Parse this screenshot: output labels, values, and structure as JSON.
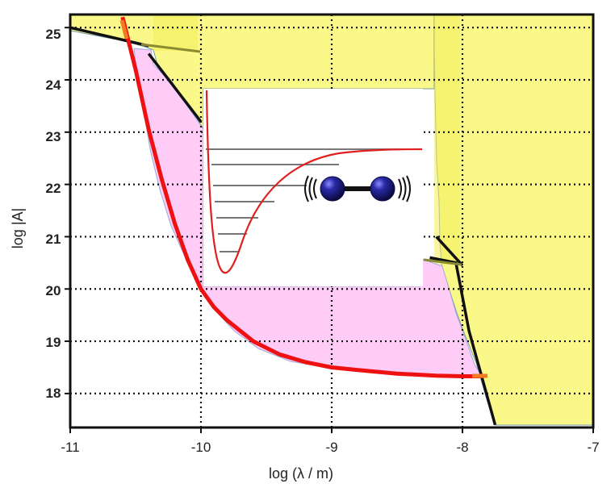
{
  "chart_data": {
    "type": "area",
    "xlabel": "log (λ / m)",
    "ylabel": "log |A|",
    "xlim": [
      -11,
      -7
    ],
    "ylim": [
      17.35,
      25.25
    ],
    "x_ticks": [
      "-11",
      "-10",
      "-9",
      "-8",
      "-7"
    ],
    "y_ticks": [
      "25",
      "24",
      "23",
      "22",
      "21",
      "20",
      "19",
      "18"
    ],
    "grid": true,
    "grid_style": "dotted",
    "excluded_regions_color": "#fbf88a",
    "allowed_region_color": "#ffccf8",
    "limit_curve_color": "#ee1111",
    "boundary_color": "#111111",
    "red_curve": {
      "x": [
        -10.6,
        -10.5,
        -10.4,
        -10.3,
        -10.2,
        -10.1,
        -10.0,
        -9.9,
        -9.8,
        -9.6,
        -9.4,
        -9.2,
        -9.0,
        -8.8,
        -8.5,
        -8.2,
        -8.0,
        -7.85
      ],
      "y": [
        25.2,
        24.2,
        23.05,
        22.1,
        21.25,
        20.55,
        20.0,
        19.65,
        19.4,
        19.0,
        18.75,
        18.6,
        18.5,
        18.45,
        18.38,
        18.34,
        18.33,
        18.33
      ]
    },
    "black_boundary_segments": [
      {
        "x": [
          -11.0,
          -10.4
        ],
        "y": [
          25.0,
          24.65
        ]
      },
      {
        "x": [
          -10.4,
          -10.0
        ],
        "y": [
          24.5,
          23.2
        ]
      },
      {
        "x": [
          -8.25,
          -8.05,
          -7.95,
          -7.75
        ],
        "y": [
          20.6,
          20.5,
          19.2,
          17.4
        ]
      },
      {
        "x": [
          -8.2,
          -8.0
        ],
        "y": [
          21.0,
          20.45
        ]
      }
    ],
    "inset": {
      "subject": "diatomic-molecule-potential-well",
      "description_icon": "vibrating-diatomic-molecule-icon",
      "molecule_color": "#1a1a8c",
      "potential_color": "#ee1111",
      "levels_color": "#777777"
    }
  }
}
